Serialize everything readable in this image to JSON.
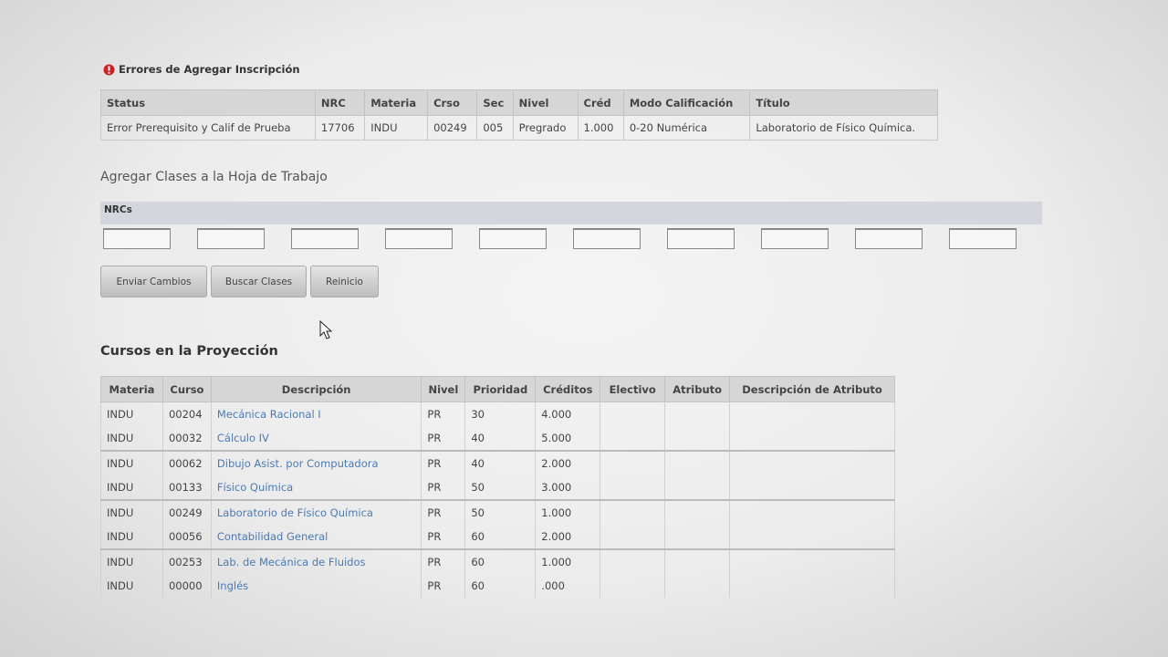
{
  "errors": {
    "title": "Errores de Agregar Inscripción",
    "headers": [
      "Status",
      "NRC",
      "Materia",
      "Crso",
      "Sec",
      "Nivel",
      "Créd",
      "Modo Calificación",
      "Título"
    ],
    "rows": [
      [
        "Error Prerequisito y Calif de Prueba",
        "17706",
        "INDU",
        "00249",
        "005",
        "Pregrado",
        "1.000",
        "0-20 Numérica",
        "Laboratorio de Físico Química."
      ]
    ]
  },
  "add_classes": {
    "title": "Agregar Clases a la Hoja de Trabajo",
    "label": "NRCs",
    "buttons": [
      "Enviar Cambios",
      "Buscar Clases",
      "Reinicio"
    ]
  },
  "courses": {
    "title": "Cursos en la Proyección",
    "headers": [
      "Materia",
      "Curso",
      "Descripción",
      "Nivel",
      "Prioridad",
      "Créditos",
      "Electivo",
      "Atributo",
      "Descripción de Atributo"
    ],
    "rows": [
      [
        "INDU",
        "00204",
        "Mecánica Racional I",
        "PR",
        "30",
        "4.000"
      ],
      [
        "INDU",
        "00032",
        "Cálculo IV",
        "PR",
        "40",
        "5.000"
      ],
      [
        "INDU",
        "00062",
        "Dibujo Asist. por Computadora",
        "PR",
        "40",
        "2.000"
      ],
      [
        "INDU",
        "00133",
        "Físico Química",
        "PR",
        "50",
        "3.000"
      ],
      [
        "INDU",
        "00249",
        "Laboratorio de Físico Química",
        "PR",
        "50",
        "1.000"
      ],
      [
        "INDU",
        "00056",
        "Contabilidad General",
        "PR",
        "60",
        "2.000"
      ],
      [
        "INDU",
        "00253",
        "Lab. de Mecánica de Fluidos",
        "PR",
        "60",
        "1.000"
      ],
      [
        "INDU",
        "00000",
        "Inglés",
        "PR",
        "60",
        ".000"
      ]
    ]
  }
}
